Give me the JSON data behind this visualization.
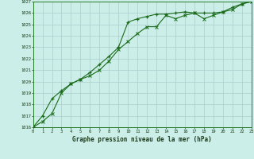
{
  "title": "Graphe pression niveau de la mer (hPa)",
  "bg_color": "#cceee8",
  "grid_color": "#aacccc",
  "line_color": "#1a6b1a",
  "x_min": 0,
  "x_max": 23,
  "y_min": 1016,
  "y_max": 1027,
  "series1_x": [
    0,
    1,
    2,
    3,
    4,
    5,
    6,
    7,
    8,
    9,
    10,
    11,
    12,
    13,
    14,
    15,
    16,
    17,
    18,
    19,
    20,
    21,
    22,
    23
  ],
  "series1_y": [
    1016.0,
    1017.0,
    1018.5,
    1019.2,
    1019.8,
    1020.2,
    1020.8,
    1021.5,
    1022.2,
    1023.0,
    1025.2,
    1025.5,
    1025.7,
    1025.9,
    1025.9,
    1026.0,
    1026.1,
    1026.0,
    1026.0,
    1026.0,
    1026.1,
    1026.5,
    1026.8,
    1027.0
  ],
  "series2_x": [
    0,
    1,
    2,
    3,
    4,
    5,
    6,
    7,
    8,
    9,
    10,
    11,
    12,
    13,
    14,
    15,
    16,
    17,
    18,
    19,
    20,
    21,
    22,
    23
  ],
  "series2_y": [
    1016.0,
    1016.5,
    1017.2,
    1019.0,
    1019.8,
    1020.2,
    1020.5,
    1021.0,
    1021.8,
    1022.8,
    1023.5,
    1024.2,
    1024.8,
    1024.8,
    1025.8,
    1025.5,
    1025.8,
    1026.0,
    1025.5,
    1025.8,
    1026.1,
    1026.3,
    1026.8,
    1027.0
  ],
  "title_fontsize": 5.5,
  "tick_fontsize": 4.0
}
